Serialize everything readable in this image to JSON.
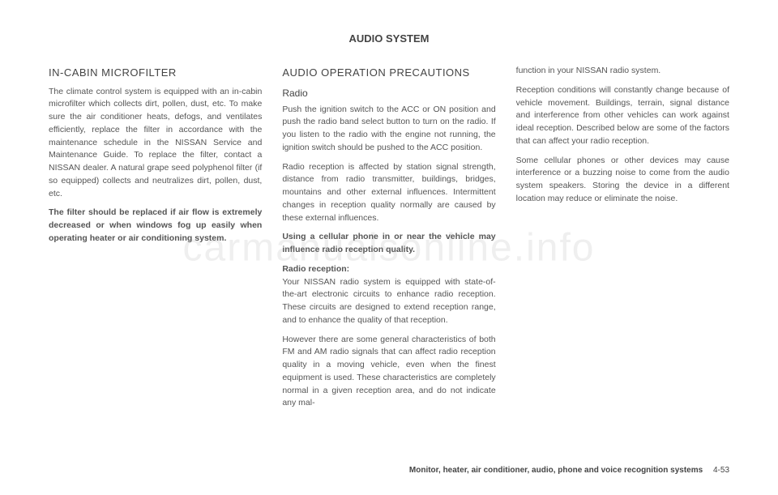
{
  "watermark": "carmanualsonline.info",
  "header": "AUDIO SYSTEM",
  "col1": {
    "h1": "IN-CABIN MICROFILTER",
    "p1": "The climate control system is equipped with an in-cabin microfilter which collects dirt, pollen, dust, etc. To make sure the air conditioner heats, defogs, and ventilates efficiently, replace the filter in accordance with the maintenance schedule in the NISSAN Service and Maintenance Guide. To replace the filter, contact a NISSAN dealer. A natural grape seed polyphenol filter (if so equipped) collects and neutralizes dirt, pollen, dust, etc.",
    "p2": "The filter should be replaced if air flow is extremely decreased or when windows fog up easily when operating heater or air conditioning system."
  },
  "col2": {
    "h1": "AUDIO OPERATION PRECAUTIONS",
    "h2": "Radio",
    "p1": "Push the ignition switch to the ACC or ON position and push the radio band select button to turn on the radio. If you listen to the radio with the engine not running, the ignition switch should be pushed to the ACC position.",
    "p2": "Radio reception is affected by station signal strength, distance from radio transmitter, buildings, bridges, mountains and other external influences. Intermittent changes in reception quality normally are caused by these external influences.",
    "p3": "Using a cellular phone in or near the vehicle may influence radio reception quality.",
    "p4h": "Radio reception:",
    "p4": "Your NISSAN radio system is equipped with state-of-the-art electronic circuits to enhance radio reception. These circuits are designed to extend reception range, and to enhance the quality of that reception.",
    "p5": "However there are some general characteristics of both FM and AM radio signals that can affect radio reception quality in a moving vehicle, even when the finest equipment is used. These characteristics are completely normal in a given reception area, and do not indicate any mal-"
  },
  "col3": {
    "p1": "function in your NISSAN radio system.",
    "p2": "Reception conditions will constantly change because of vehicle movement. Buildings, terrain, signal distance and interference from other vehicles can work against ideal reception. Described below are some of the factors that can affect your radio reception.",
    "p3": "Some cellular phones or other devices may cause interference or a buzzing noise to come from the audio system speakers. Storing the device in a different location may reduce or eliminate the noise."
  },
  "footer": {
    "section": "Monitor, heater, air conditioner, audio, phone and voice recognition systems",
    "page": "4-53"
  }
}
